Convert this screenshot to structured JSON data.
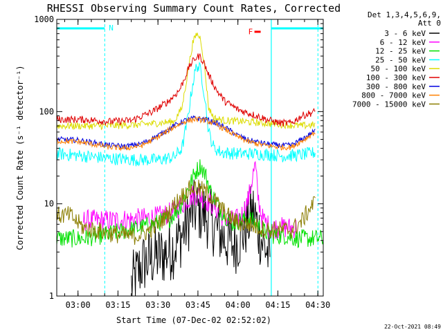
{
  "chart_data": {
    "type": "line",
    "title": "RHESSI Observing Summary Count Rates, Corrected",
    "xlabel": "Start Time (07-Dec-02 02:52:02)",
    "ylabel": "Corrected Count Rate (s⁻¹ detector⁻¹)",
    "x_units": "minutes after 02:52:02",
    "xlim": [
      0,
      100
    ],
    "ylim": [
      1,
      1000
    ],
    "y_scale": "log",
    "x_ticks": [
      {
        "label": "03:00",
        "x": 7.97
      },
      {
        "label": "03:15",
        "x": 22.97
      },
      {
        "label": "03:30",
        "x": 37.97
      },
      {
        "label": "03:45",
        "x": 52.97
      },
      {
        "label": "04:00",
        "x": 67.97
      },
      {
        "label": "04:15",
        "x": 82.97
      },
      {
        "label": "04:30",
        "x": 97.97
      }
    ],
    "y_ticks": [
      {
        "label": "1",
        "value": 1
      },
      {
        "label": "10",
        "value": 10
      },
      {
        "label": "100",
        "value": 100
      },
      {
        "label": "1000",
        "value": 1000
      }
    ],
    "legend": {
      "position": "right",
      "header": [
        "Det 1,3,4,5,6,9,",
        "Att 0"
      ],
      "entries": [
        {
          "label": "3 - 6 keV",
          "color": "#000000"
        },
        {
          "label": "6 - 12 keV",
          "color": "#ff00ff"
        },
        {
          "label": "12 - 25 keV",
          "color": "#00e000"
        },
        {
          "label": "25 - 50 keV",
          "color": "#00ffff"
        },
        {
          "label": "50 - 100 keV",
          "color": "#dcdc00"
        },
        {
          "label": "100 - 300 keV",
          "color": "#e00000"
        },
        {
          "label": "300 - 800 keV",
          "color": "#0000e0"
        },
        {
          "label": "800 - 7000 keV",
          "color": "#ff8000"
        },
        {
          "label": "7000 - 15000 keV",
          "color": "#8b7d00"
        }
      ]
    },
    "series": [
      {
        "name": "3 - 6 keV",
        "color": "#000000",
        "points": [
          [
            28,
            1.3
          ],
          [
            32,
            2.2
          ],
          [
            36,
            2.6
          ],
          [
            40,
            2.8
          ],
          [
            44,
            3.4
          ],
          [
            47,
            4.6
          ],
          [
            50,
            7.2
          ],
          [
            52,
            8.6
          ],
          [
            54,
            8.2
          ],
          [
            57,
            7.0
          ],
          [
            60,
            5.3
          ],
          [
            63,
            4.2
          ],
          [
            66,
            3.6
          ],
          [
            68,
            4.0
          ],
          [
            70,
            5.0
          ],
          [
            72,
            6.5
          ],
          [
            74,
            8.6
          ],
          [
            75,
            6.0
          ],
          [
            77,
            4.0
          ],
          [
            79,
            3.0
          ],
          [
            80,
            2.2
          ]
        ]
      },
      {
        "name": "6 - 12 keV",
        "color": "#ff00ff",
        "points": [
          [
            10,
            6.6
          ],
          [
            20,
            6.6
          ],
          [
            30,
            6.8
          ],
          [
            38,
            7.2
          ],
          [
            44,
            8.2
          ],
          [
            48,
            10.5
          ],
          [
            51,
            12.5
          ],
          [
            53,
            12.5
          ],
          [
            56,
            11.0
          ],
          [
            59,
            9.5
          ],
          [
            62,
            7.5
          ],
          [
            65,
            6.5
          ],
          [
            68,
            6.8
          ],
          [
            70,
            8.0
          ],
          [
            72,
            11.5
          ],
          [
            73.5,
            20
          ],
          [
            74.5,
            26
          ],
          [
            75.5,
            12
          ],
          [
            77,
            7.0
          ],
          [
            80,
            5.5
          ],
          [
            85,
            5.5
          ],
          [
            90,
            5.5
          ]
        ]
      },
      {
        "name": "12 - 25 keV",
        "color": "#00e000",
        "points": [
          [
            0,
            4.2
          ],
          [
            10,
            4.2
          ],
          [
            18,
            4.6
          ],
          [
            24,
            5.0
          ],
          [
            30,
            5.4
          ],
          [
            36,
            6.0
          ],
          [
            42,
            6.8
          ],
          [
            46,
            9.0
          ],
          [
            49,
            14
          ],
          [
            52,
            22
          ],
          [
            54,
            26
          ],
          [
            56,
            20
          ],
          [
            58,
            13
          ],
          [
            61,
            9.0
          ],
          [
            64,
            7.0
          ],
          [
            66,
            6.2
          ],
          [
            69,
            6.6
          ],
          [
            72,
            7.0
          ],
          [
            75,
            6.0
          ],
          [
            78,
            5.0
          ],
          [
            82,
            4.5
          ],
          [
            86,
            4.5
          ],
          [
            90,
            4.2
          ],
          [
            100,
            4.2
          ]
        ]
      },
      {
        "name": "25 - 50 keV",
        "color": "#00ffff",
        "points": [
          [
            0,
            35
          ],
          [
            10,
            33
          ],
          [
            20,
            31
          ],
          [
            30,
            30
          ],
          [
            38,
            30
          ],
          [
            44,
            32
          ],
          [
            47,
            40
          ],
          [
            49,
            80
          ],
          [
            51,
            200
          ],
          [
            52.5,
            320
          ],
          [
            54,
            280
          ],
          [
            55.5,
            150
          ],
          [
            57,
            60
          ],
          [
            59,
            40
          ],
          [
            62,
            36
          ],
          [
            68,
            35
          ],
          [
            75,
            35
          ],
          [
            85,
            33
          ],
          [
            92,
            34
          ],
          [
            97,
            36
          ]
        ]
      },
      {
        "name": "50 - 100 keV",
        "color": "#dcdc00",
        "points": [
          [
            0,
            70
          ],
          [
            10,
            70
          ],
          [
            20,
            70
          ],
          [
            30,
            72
          ],
          [
            38,
            75
          ],
          [
            44,
            78
          ],
          [
            47,
            110
          ],
          [
            49,
            250
          ],
          [
            51,
            550
          ],
          [
            52.5,
            700
          ],
          [
            54,
            620
          ],
          [
            55.5,
            300
          ],
          [
            57,
            110
          ],
          [
            59,
            85
          ],
          [
            63,
            80
          ],
          [
            70,
            78
          ],
          [
            78,
            75
          ],
          [
            86,
            72
          ],
          [
            92,
            70
          ],
          [
            97,
            72
          ]
        ]
      },
      {
        "name": "100 - 300 keV",
        "color": "#e00000",
        "points": [
          [
            0,
            82
          ],
          [
            10,
            82
          ],
          [
            20,
            78
          ],
          [
            28,
            80
          ],
          [
            36,
            100
          ],
          [
            42,
            130
          ],
          [
            46,
            170
          ],
          [
            48,
            230
          ],
          [
            50,
            320
          ],
          [
            52,
            380
          ],
          [
            53.5,
            400
          ],
          [
            55,
            350
          ],
          [
            57,
            250
          ],
          [
            60,
            170
          ],
          [
            63,
            130
          ],
          [
            68,
            105
          ],
          [
            75,
            90
          ],
          [
            80,
            80
          ],
          [
            84,
            75
          ],
          [
            88,
            75
          ],
          [
            92,
            90
          ],
          [
            97,
            100
          ]
        ]
      },
      {
        "name": "300 - 800 keV",
        "color": "#0000e0",
        "points": [
          [
            0,
            50
          ],
          [
            8,
            49
          ],
          [
            14,
            46
          ],
          [
            20,
            43
          ],
          [
            26,
            42
          ],
          [
            32,
            45
          ],
          [
            38,
            55
          ],
          [
            44,
            70
          ],
          [
            48,
            80
          ],
          [
            52,
            85
          ],
          [
            56,
            82
          ],
          [
            60,
            75
          ],
          [
            64,
            65
          ],
          [
            68,
            55
          ],
          [
            72,
            49
          ],
          [
            78,
            45
          ],
          [
            84,
            43
          ],
          [
            88,
            43
          ],
          [
            92,
            50
          ],
          [
            97,
            62
          ]
        ]
      },
      {
        "name": "800 - 7000 keV",
        "color": "#ff8000",
        "points": [
          [
            0,
            48
          ],
          [
            8,
            47
          ],
          [
            14,
            44
          ],
          [
            20,
            41
          ],
          [
            26,
            40
          ],
          [
            32,
            43
          ],
          [
            38,
            53
          ],
          [
            44,
            68
          ],
          [
            48,
            78
          ],
          [
            52,
            83
          ],
          [
            56,
            80
          ],
          [
            60,
            72
          ],
          [
            64,
            62
          ],
          [
            68,
            53
          ],
          [
            72,
            47
          ],
          [
            78,
            43
          ],
          [
            84,
            41
          ],
          [
            88,
            41
          ],
          [
            92,
            48
          ],
          [
            97,
            60
          ]
        ]
      },
      {
        "name": "7000 - 15000 keV",
        "color": "#8b7d00",
        "points": [
          [
            0,
            7.5
          ],
          [
            5,
            7.5
          ],
          [
            10,
            5.5
          ],
          [
            14,
            5.2
          ],
          [
            20,
            4.8
          ],
          [
            26,
            4.5
          ],
          [
            30,
            4.5
          ],
          [
            34,
            5.0
          ],
          [
            38,
            6.0
          ],
          [
            42,
            8.0
          ],
          [
            46,
            11.5
          ],
          [
            50,
            14.5
          ],
          [
            52,
            15
          ],
          [
            55,
            14
          ],
          [
            58,
            12
          ],
          [
            61,
            9.5
          ],
          [
            64,
            7.5
          ],
          [
            68,
            6.2
          ],
          [
            72,
            6.0
          ],
          [
            76,
            5.5
          ],
          [
            80,
            5.2
          ],
          [
            84,
            5.2
          ],
          [
            88,
            5.2
          ],
          [
            92,
            6.5
          ],
          [
            95,
            9.0
          ],
          [
            97,
            10.5
          ]
        ]
      }
    ],
    "annotations": [
      {
        "label": "N",
        "x_start": 0,
        "x_end": 18,
        "color": "#00ffff"
      },
      {
        "label": "F",
        "x": 76,
        "y": 740,
        "color": "#ff0000"
      }
    ],
    "vertical_markers": [
      {
        "x": 18,
        "style": "dashed",
        "color": "#00ffff"
      },
      {
        "x": 80.5,
        "style": "solid",
        "color": "#00ffff"
      },
      {
        "x": 98,
        "style": "dashed",
        "color": "#00ffff"
      }
    ],
    "footer_date": "22-Oct-2021 08:49"
  }
}
